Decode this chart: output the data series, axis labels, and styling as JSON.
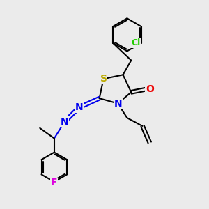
{
  "bg_color": "#ebebeb",
  "atom_colors": {
    "C": "#000000",
    "N": "#0000ee",
    "O": "#ee0000",
    "S": "#bbaa00",
    "Cl": "#22cc00",
    "F": "#dd00dd",
    "H": "#000000"
  },
  "bond_color": "#000000",
  "figsize": [
    3.0,
    3.0
  ],
  "dpi": 100
}
